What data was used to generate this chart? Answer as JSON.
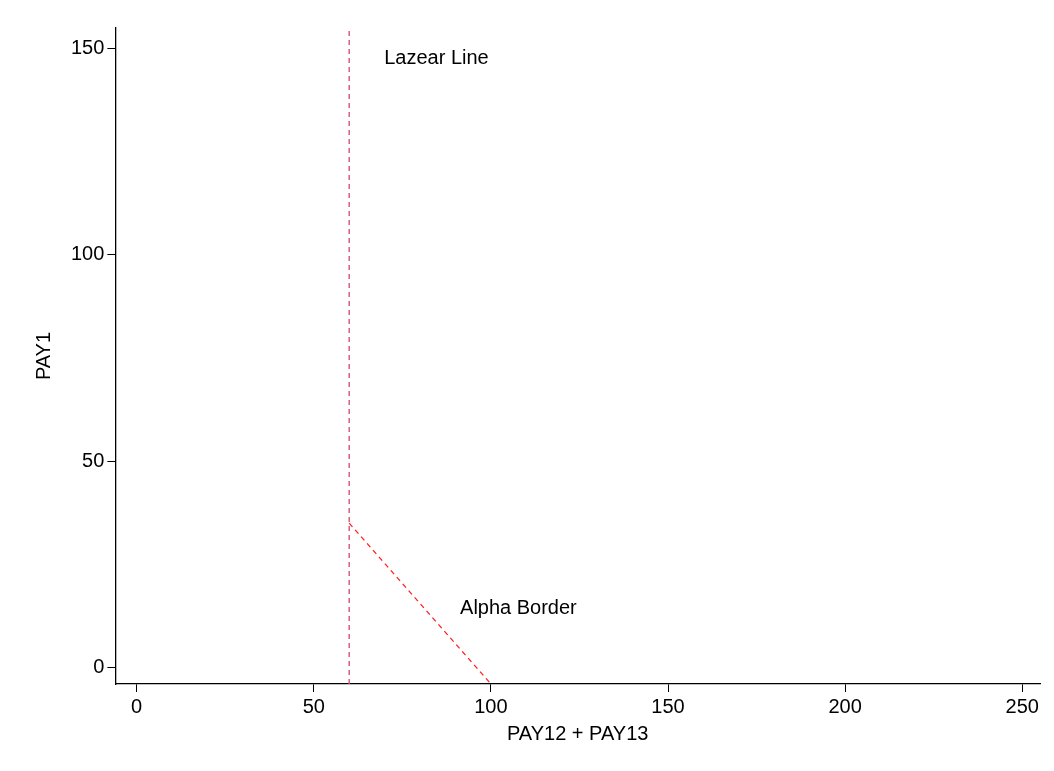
{
  "chart_data": {
    "type": "line",
    "xlabel": "PAY12 + PAY13",
    "ylabel": "PAY1",
    "xlim": [
      -6,
      255
    ],
    "xticks": [
      0,
      50,
      100,
      150,
      200,
      250
    ],
    "ylim": [
      -4,
      155
    ],
    "yticks": [
      0,
      50,
      100,
      150
    ],
    "grid": false,
    "legend": false,
    "marker": "none",
    "line_style": "dashed",
    "series": [
      {
        "name": "Alpha Border",
        "x": [
          60,
          100
        ],
        "values": [
          35,
          -4
        ],
        "color": "#ff2020"
      }
    ],
    "ref_lines": [
      {
        "axis": "x",
        "value": 60,
        "label": "Lazear Line",
        "color": "#d6476f",
        "line_style": "dashed"
      }
    ]
  }
}
